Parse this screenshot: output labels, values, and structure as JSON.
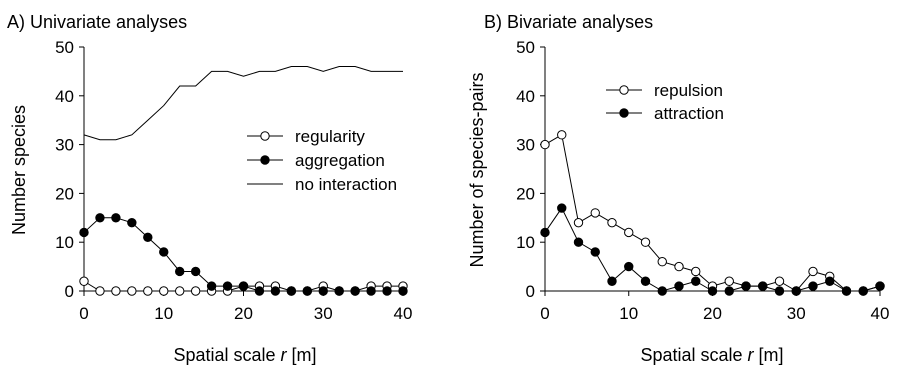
{
  "chart_data": [
    {
      "type": "line",
      "title": "A) Univariate analyses",
      "xlabel_prefix": "Spatial scale ",
      "xlabel_var": "r",
      "xlabel_suffix": " [m]",
      "ylabel": "Number species",
      "xlim": [
        0,
        40
      ],
      "ylim": [
        0,
        50
      ],
      "xticks": [
        0,
        10,
        20,
        30,
        40
      ],
      "yticks": [
        0,
        10,
        20,
        30,
        40,
        50
      ],
      "grid": false,
      "legend_position": "center-right",
      "series": [
        {
          "name": "regularity",
          "marker": "open-circle",
          "color": "#000000",
          "x": [
            0,
            2,
            4,
            6,
            8,
            10,
            12,
            14,
            16,
            18,
            20,
            22,
            24,
            26,
            28,
            30,
            32,
            34,
            36,
            38,
            40
          ],
          "y": [
            2,
            0,
            0,
            0,
            0,
            0,
            0,
            0,
            0,
            0,
            1,
            1,
            1,
            0,
            0,
            1,
            0,
            0,
            1,
            1,
            1
          ]
        },
        {
          "name": "aggregation",
          "marker": "filled-circle",
          "color": "#000000",
          "x": [
            0,
            2,
            4,
            6,
            8,
            10,
            12,
            14,
            16,
            18,
            20,
            22,
            24,
            26,
            28,
            30,
            32,
            34,
            36,
            38,
            40
          ],
          "y": [
            12,
            15,
            15,
            14,
            11,
            8,
            4,
            4,
            1,
            1,
            1,
            0,
            0,
            0,
            0,
            0,
            0,
            0,
            0,
            0,
            0
          ]
        },
        {
          "name": "no interaction",
          "marker": "none",
          "color": "#000000",
          "x": [
            0,
            2,
            4,
            6,
            8,
            10,
            12,
            14,
            16,
            18,
            20,
            22,
            24,
            26,
            28,
            30,
            32,
            34,
            36,
            38,
            40
          ],
          "y": [
            32,
            31,
            31,
            32,
            35,
            38,
            42,
            42,
            45,
            45,
            44,
            45,
            45,
            46,
            46,
            45,
            46,
            46,
            45,
            45,
            45
          ]
        }
      ]
    },
    {
      "type": "line",
      "title": "B) Bivariate analyses",
      "xlabel_prefix": "Spatial scale ",
      "xlabel_var": "r",
      "xlabel_suffix": " [m]",
      "ylabel": "Number of species-pairs",
      "xlim": [
        0,
        40
      ],
      "ylim": [
        0,
        50
      ],
      "xticks": [
        0,
        10,
        20,
        30,
        40
      ],
      "yticks": [
        0,
        10,
        20,
        30,
        40,
        50
      ],
      "grid": false,
      "legend_position": "top-right",
      "series": [
        {
          "name": "repulsion",
          "marker": "open-circle",
          "color": "#000000",
          "x": [
            0,
            2,
            4,
            6,
            8,
            10,
            12,
            14,
            16,
            18,
            20,
            22,
            24,
            26,
            28,
            30,
            32,
            34,
            36,
            38,
            40
          ],
          "y": [
            30,
            32,
            14,
            16,
            14,
            12,
            10,
            6,
            5,
            4,
            1,
            2,
            1,
            1,
            2,
            0,
            4,
            3,
            0,
            0,
            1
          ]
        },
        {
          "name": "attraction",
          "marker": "filled-circle",
          "color": "#000000",
          "x": [
            0,
            2,
            4,
            6,
            8,
            10,
            12,
            14,
            16,
            18,
            20,
            22,
            24,
            26,
            28,
            30,
            32,
            34,
            36,
            38,
            40
          ],
          "y": [
            12,
            17,
            10,
            8,
            2,
            5,
            2,
            0,
            1,
            2,
            0,
            0,
            1,
            1,
            0,
            0,
            1,
            2,
            0,
            0,
            1
          ]
        }
      ]
    }
  ]
}
